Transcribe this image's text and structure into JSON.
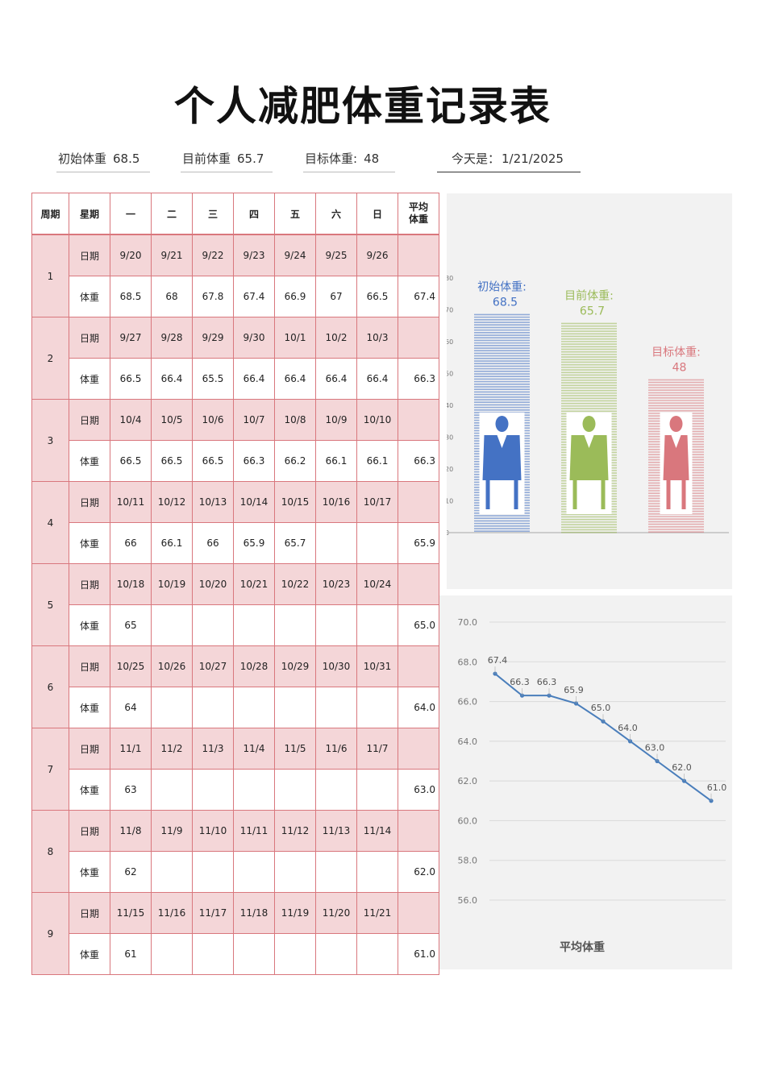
{
  "title": "个人减肥体重记录表",
  "info": {
    "initial_label": "初始体重",
    "initial_value": "68.5",
    "current_label": "目前体重",
    "current_value": "65.7",
    "target_label": "目标体重:",
    "target_value": "48",
    "today_label": "今天是：",
    "today_value": "1/21/2025"
  },
  "table": {
    "headers": {
      "week": "周期",
      "weekday": "星期",
      "days": [
        "一",
        "二",
        "三",
        "四",
        "五",
        "六",
        "日"
      ],
      "avg_line1": "平均",
      "avg_line2": "体重"
    },
    "date_label": "日期",
    "weight_label": "体重",
    "weeks": [
      {
        "n": "1",
        "dates": [
          "9/20",
          "9/21",
          "9/22",
          "9/23",
          "9/24",
          "9/25",
          "9/26"
        ],
        "weights": [
          "68.5",
          "68",
          "67.8",
          "67.4",
          "66.9",
          "67",
          "66.5"
        ],
        "avg": "67.4"
      },
      {
        "n": "2",
        "dates": [
          "9/27",
          "9/28",
          "9/29",
          "9/30",
          "10/1",
          "10/2",
          "10/3"
        ],
        "weights": [
          "66.5",
          "66.4",
          "65.5",
          "66.4",
          "66.4",
          "66.4",
          "66.4"
        ],
        "avg": "66.3"
      },
      {
        "n": "3",
        "dates": [
          "10/4",
          "10/5",
          "10/6",
          "10/7",
          "10/8",
          "10/9",
          "10/10"
        ],
        "weights": [
          "66.5",
          "66.5",
          "66.5",
          "66.3",
          "66.2",
          "66.1",
          "66.1"
        ],
        "avg": "66.3"
      },
      {
        "n": "4",
        "dates": [
          "10/11",
          "10/12",
          "10/13",
          "10/14",
          "10/15",
          "10/16",
          "10/17"
        ],
        "weights": [
          "66",
          "66.1",
          "66",
          "65.9",
          "65.7",
          "",
          ""
        ],
        "avg": "65.9"
      },
      {
        "n": "5",
        "dates": [
          "10/18",
          "10/19",
          "10/20",
          "10/21",
          "10/22",
          "10/23",
          "10/24"
        ],
        "weights": [
          "65",
          "",
          "",
          "",
          "",
          "",
          ""
        ],
        "avg": "65.0"
      },
      {
        "n": "6",
        "dates": [
          "10/25",
          "10/26",
          "10/27",
          "10/28",
          "10/29",
          "10/30",
          "10/31"
        ],
        "weights": [
          "64",
          "",
          "",
          "",
          "",
          "",
          ""
        ],
        "avg": "64.0"
      },
      {
        "n": "7",
        "dates": [
          "11/1",
          "11/2",
          "11/3",
          "11/4",
          "11/5",
          "11/6",
          "11/7"
        ],
        "weights": [
          "63",
          "",
          "",
          "",
          "",
          "",
          ""
        ],
        "avg": "63.0"
      },
      {
        "n": "8",
        "dates": [
          "11/8",
          "11/9",
          "11/10",
          "11/11",
          "11/12",
          "11/13",
          "11/14"
        ],
        "weights": [
          "62",
          "",
          "",
          "",
          "",
          "",
          ""
        ],
        "avg": "62.0"
      },
      {
        "n": "9",
        "dates": [
          "11/15",
          "11/16",
          "11/17",
          "11/18",
          "11/19",
          "11/20",
          "11/21"
        ],
        "weights": [
          "61",
          "",
          "",
          "",
          "",
          "",
          ""
        ],
        "avg": "61.0"
      }
    ]
  },
  "chart_data": [
    {
      "type": "bar",
      "categories": [
        "初始体重:",
        "目前体重:",
        "目标体重:"
      ],
      "values": [
        68.5,
        65.7,
        48
      ],
      "colors": [
        "#4472c4",
        "#9bbb59",
        "#d9777d"
      ],
      "y_ticks": [
        "0",
        "10",
        "20",
        "30",
        "40",
        "50",
        "60",
        "70",
        "80"
      ],
      "ylim": [
        0,
        80
      ],
      "figure_icon": "person-silhouette-icon"
    },
    {
      "type": "line",
      "title": "平均体重",
      "x": [
        1,
        2,
        3,
        4,
        5,
        6,
        7,
        8,
        9
      ],
      "values": [
        67.4,
        66.3,
        66.3,
        65.9,
        65.0,
        64.0,
        63.0,
        62.0,
        61.0
      ],
      "data_labels": [
        "67.4",
        "66.3",
        "66.3",
        "65.9",
        "65.0",
        "64.0",
        "63.0",
        "62.0",
        "61.0"
      ],
      "y_ticks": [
        "56.0",
        "58.0",
        "60.0",
        "62.0",
        "64.0",
        "66.0",
        "68.0",
        "70.0"
      ],
      "ylim": [
        56,
        70
      ],
      "color": "#4a7ebb",
      "grid": true
    }
  ]
}
